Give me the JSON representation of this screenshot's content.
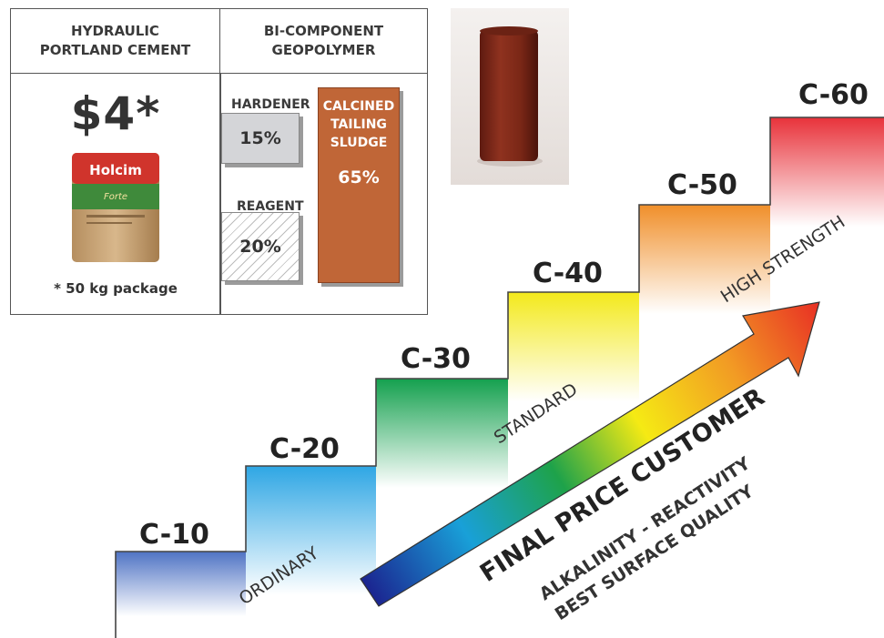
{
  "comparison": {
    "left_header": [
      "HYDRAULIC",
      "PORTLAND CEMENT"
    ],
    "right_header": [
      "BI-COMPONENT",
      "GEOPOLYMER"
    ],
    "price": "$4*",
    "bag_brand": "Holcim",
    "bag_product": "Forte",
    "package_note": "* 50 kg package",
    "hardener_label": "HARDENER",
    "hardener_pct": "15%",
    "reagent_label": "REAGENT",
    "reagent_pct": "20%",
    "sludge_label": [
      "CALCINED",
      "TAILING",
      "SLUDGE"
    ],
    "sludge_pct": "65%"
  },
  "classes": [
    "C-10",
    "C-20",
    "C-30",
    "C-40",
    "C-50",
    "C-60"
  ],
  "step_colors": [
    "#4f73c4",
    "#2ea6e4",
    "#14a04e",
    "#f3e91b",
    "#f08f2a",
    "#e8323a"
  ],
  "categories": {
    "ordinary": "ORDINARY",
    "standard": "STANDARD",
    "high": "HIGH STRENGTH"
  },
  "arrow": {
    "main": "FINAL PRICE CUSTOMER",
    "line1": "ALKALINITY - REACTIVITY",
    "line2": "BEST SURFACE QUALITY",
    "colors": [
      "#1b1e8c",
      "#19a0d8",
      "#1ea24a",
      "#f5ea14",
      "#f29b24",
      "#e83024"
    ]
  }
}
